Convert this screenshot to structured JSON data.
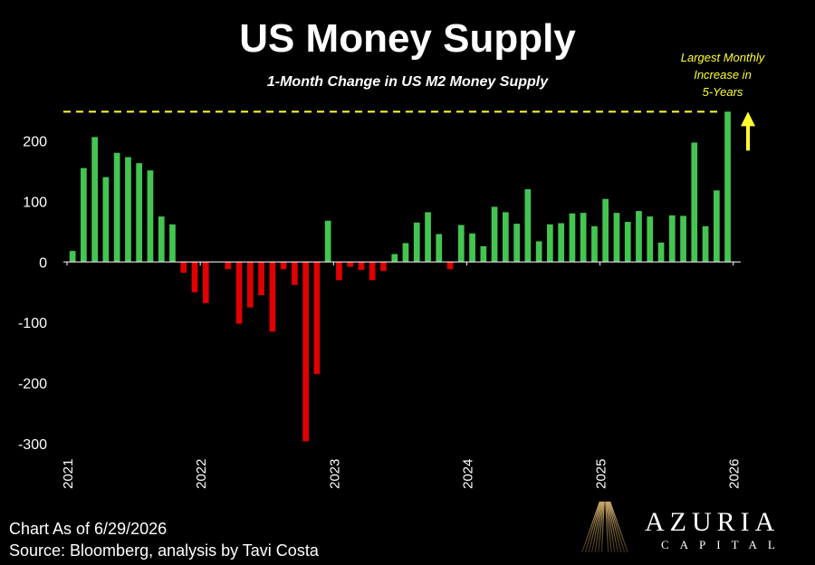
{
  "chart_data": {
    "type": "bar",
    "title": "US Money Supply",
    "subtitle": "1-Month Change in US M2 Money Supply",
    "xlabel": "",
    "ylabel": "",
    "ylim": [
      -300,
      250
    ],
    "yticks": [
      200,
      100,
      0,
      -100,
      -200,
      -300
    ],
    "xticks": [
      "2021",
      "2022",
      "2023",
      "2024",
      "2025",
      "2026"
    ],
    "grid": false,
    "positive_color": "#44c552",
    "negative_color": "#e00000",
    "reference_line": {
      "value": 248,
      "color": "#ffff33",
      "style": "dashed"
    },
    "annotation": [
      "Largest Monthly",
      "Increase in",
      "5-Years"
    ],
    "values": [
      18,
      155,
      206,
      140,
      180,
      173,
      163,
      151,
      75,
      62,
      -18,
      -50,
      -68,
      0,
      -12,
      -102,
      -75,
      -55,
      -115,
      -12,
      -38,
      -296,
      -185,
      68,
      -30,
      -8,
      -13,
      -30,
      -15,
      13,
      31,
      65,
      82,
      46,
      -12,
      61,
      47,
      26,
      91,
      82,
      63,
      120,
      34,
      62,
      64,
      80,
      81,
      59,
      104,
      81,
      66,
      84,
      75,
      32,
      77,
      76,
      197,
      59,
      118,
      248
    ]
  },
  "footer": {
    "line1": "Chart As of 6/29/2026",
    "line2": "Source: Bloomberg, analysis by Tavi Costa"
  },
  "logo": {
    "name": "AZURIA",
    "sub": "CAPITAL"
  }
}
